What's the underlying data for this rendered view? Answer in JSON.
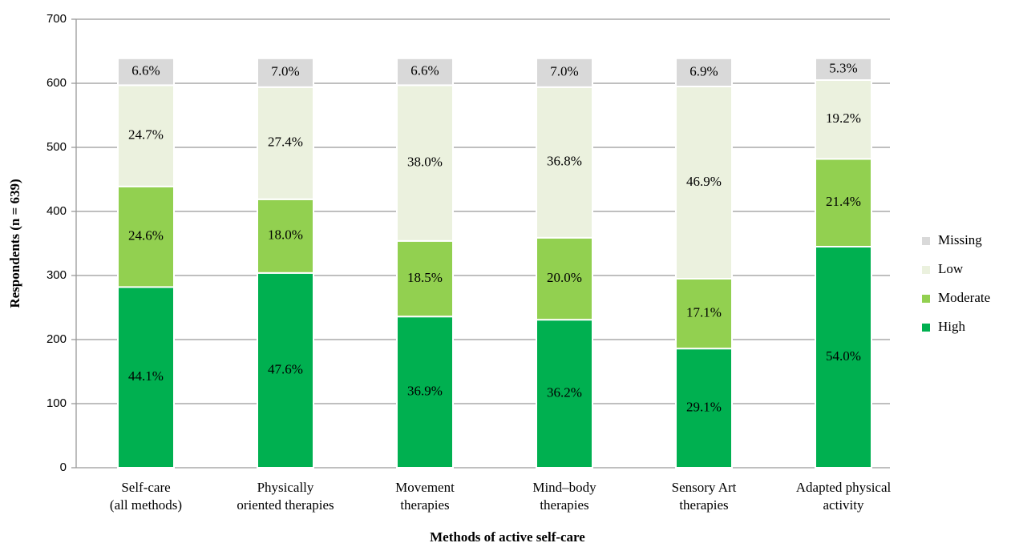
{
  "chart_data": {
    "type": "stacked_bar",
    "x_label": "Methods of active self-care",
    "y_label": "Respondents (n = 639)",
    "categories": [
      [
        "Self-care",
        "(all methods)"
      ],
      [
        "Physically",
        "oriented therapies"
      ],
      [
        "Movement",
        "therapies"
      ],
      [
        "Mind–body",
        "therapies"
      ],
      [
        "Sensory Art",
        "therapies"
      ],
      [
        "Adapted physical",
        "activity"
      ]
    ],
    "series": [
      {
        "name": "High",
        "color": "#00b050",
        "values": [
          282,
          304,
          236,
          231,
          186,
          345
        ],
        "value_labels": [
          "44.1%",
          "47.6%",
          "36.9%",
          "36.2%",
          "29.1%",
          "54.0%"
        ]
      },
      {
        "name": "Moderate",
        "color": "#92d050",
        "values": [
          157,
          115,
          118,
          128,
          109,
          137
        ],
        "value_labels": [
          "24.6%",
          "18.0%",
          "18.5%",
          "20.0%",
          "17.1%",
          "21.4%"
        ]
      },
      {
        "name": "Low",
        "color": "#ebf1de",
        "values": [
          158,
          175,
          243,
          235,
          300,
          123
        ],
        "value_labels": [
          "24.7%",
          "27.4%",
          "38.0%",
          "36.8%",
          "46.9%",
          "19.2%"
        ]
      },
      {
        "name": "Missing",
        "color": "#d9d9d9",
        "values": [
          42,
          45,
          42,
          45,
          44,
          34
        ],
        "value_labels": [
          "6.6%",
          "7.0%",
          "6.6%",
          "7.0%",
          "6.9%",
          "5.3%"
        ]
      }
    ],
    "ylim": [
      0,
      700
    ],
    "yticks": [
      0,
      100,
      200,
      300,
      400,
      500,
      600,
      700
    ],
    "grid": true,
    "legend": "right"
  }
}
